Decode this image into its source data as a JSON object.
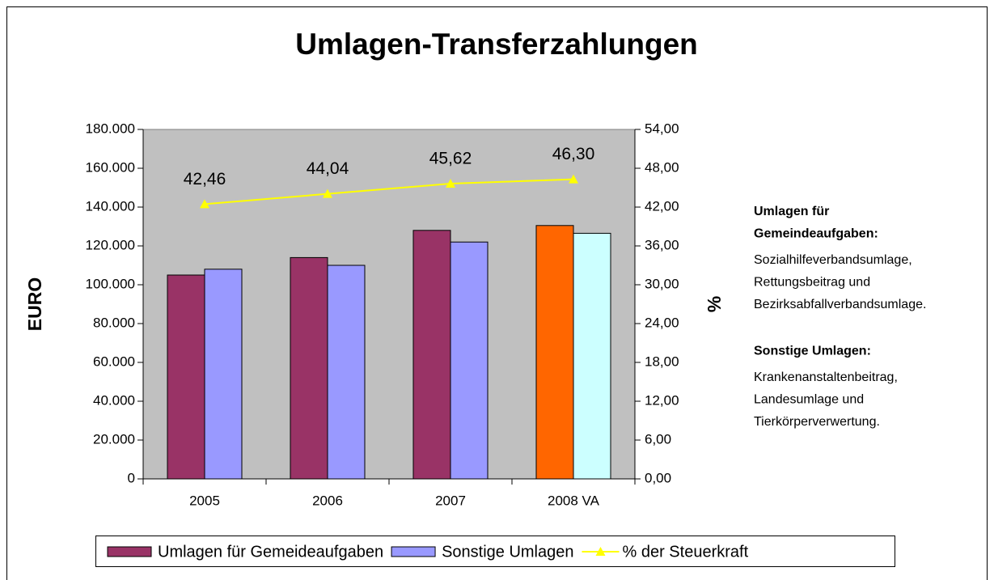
{
  "chart_data": {
    "type": "bar",
    "title": "Umlagen-Transferzahlungen",
    "ylabel": "EURO",
    "y2label": "%",
    "categories": [
      "2005",
      "2006",
      "2007",
      "2008 VA"
    ],
    "series": [
      {
        "name": "Umlagen für Gemeideaufgaben",
        "color": "#993366",
        "point_colors": [
          "#993366",
          "#993366",
          "#993366",
          "#FF6600"
        ],
        "values": [
          105000,
          114000,
          128000,
          130500
        ]
      },
      {
        "name": "Sonstige Umlagen",
        "color": "#9999FF",
        "point_colors": [
          "#9999FF",
          "#9999FF",
          "#9999FF",
          "#CCFFFF"
        ],
        "values": [
          108000,
          110000,
          122000,
          126500
        ]
      },
      {
        "name": "% der Steuerkraft",
        "type": "line",
        "axis": "y2",
        "color": "#FFFF00",
        "values": [
          42.46,
          44.04,
          45.62,
          46.3
        ],
        "value_labels": [
          "42,46",
          "44,04",
          "45,62",
          "46,30"
        ]
      }
    ],
    "ylim": [
      0,
      180000
    ],
    "yticks": [
      0,
      {
        "value": 20000,
        "label": "20.000"
      },
      {
        "value": 40000,
        "label": "40.000"
      },
      {
        "value": 60000,
        "label": "60.000"
      },
      {
        "value": 80000,
        "label": "80.000"
      },
      {
        "value": 100000,
        "label": "100.000"
      },
      {
        "value": 120000,
        "label": "120.000"
      },
      {
        "value": 140000,
        "label": "140.000"
      },
      {
        "value": 160000,
        "label": "160.000"
      },
      {
        "value": 180000,
        "label": "180.000"
      }
    ],
    "y2lim": [
      0,
      54
    ],
    "y2ticks": [
      {
        "value": 0,
        "label": "0,00"
      },
      {
        "value": 6,
        "label": "6,00"
      },
      {
        "value": 12,
        "label": "12,00"
      },
      {
        "value": 18,
        "label": "18,00"
      },
      {
        "value": 24,
        "label": "24,00"
      },
      {
        "value": 30,
        "label": "30,00"
      },
      {
        "value": 36,
        "label": "36,00"
      },
      {
        "value": 42,
        "label": "42,00"
      },
      {
        "value": 48,
        "label": "48,00"
      },
      {
        "value": 54,
        "label": "54,00"
      }
    ],
    "legend": "bottom",
    "annotations": [
      {
        "title": [
          "Umlagen für",
          "Gemeindeaufgaben:"
        ],
        "lines": [
          "Sozialhilfeverbandsumlage,",
          "Rettungsbeitrag und",
          "Bezirksabfallverbandsumlage."
        ]
      },
      {
        "title": [
          "Sonstige Umlagen:"
        ],
        "lines": [
          "Krankenanstaltenbeitrag,",
          "Landesumlage und",
          "Tierkörperverwertung."
        ]
      }
    ]
  }
}
